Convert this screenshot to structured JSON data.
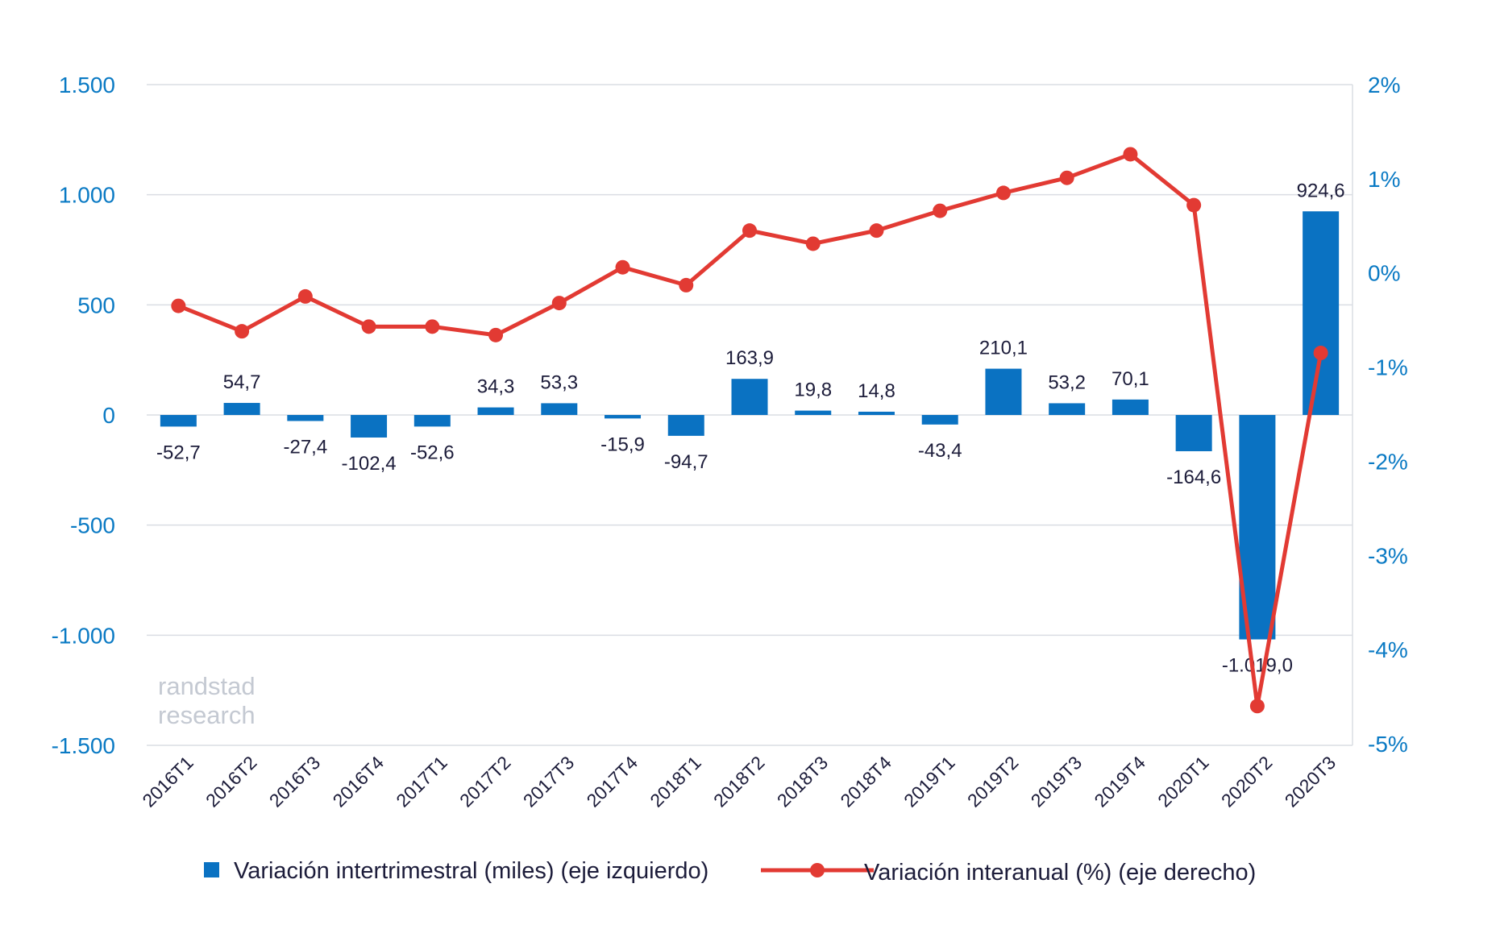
{
  "chart_data": {
    "type": "bar+line",
    "categories": [
      "2016T1",
      "2016T2",
      "2016T3",
      "2016T4",
      "2017T1",
      "2017T2",
      "2017T3",
      "2017T4",
      "2018T1",
      "2018T2",
      "2018T3",
      "2018T4",
      "2019T1",
      "2019T2",
      "2019T3",
      "2019T4",
      "2020T1",
      "2020T2",
      "2020T3"
    ],
    "series": [
      {
        "name": "Variación intertrimestral (miles) (eje izquierdo)",
        "type": "bar",
        "axis": "left",
        "color": "#0a72c2",
        "values": [
          -52.7,
          54.7,
          -27.4,
          -102.4,
          -52.6,
          34.3,
          53.3,
          -15.9,
          -94.7,
          163.9,
          19.8,
          14.8,
          -43.4,
          210.1,
          53.2,
          70.1,
          -164.6,
          -1019.0,
          924.6
        ],
        "labels": [
          "-52,7",
          "54,7",
          "-27,4",
          "-102,4",
          "-52,6",
          "34,3",
          "53,3",
          "-15,9",
          "-94,7",
          "163,9",
          "19,8",
          "14,8",
          "-43,4",
          "210,1",
          "53,2",
          "70,1",
          "-164,6",
          "-1.019,0",
          "924,6"
        ]
      },
      {
        "name": "Variación interanual (%) (eje derecho)",
        "type": "line",
        "axis": "right",
        "color": "#e23a33",
        "values": [
          -0.35,
          -0.62,
          -0.25,
          -0.57,
          -0.57,
          -0.66,
          -0.32,
          0.06,
          -0.13,
          0.45,
          0.31,
          0.45,
          0.66,
          0.85,
          1.01,
          1.26,
          0.72,
          -4.6,
          -0.85
        ]
      }
    ],
    "y_left": {
      "range": [
        -1500,
        1500
      ],
      "ticks": [
        1500,
        1000,
        500,
        0,
        -500,
        -1000,
        -1500
      ],
      "tick_labels": [
        "1.500",
        "1.000",
        "500",
        "0",
        "-500",
        "-1.000",
        "-1.500"
      ]
    },
    "y_right": {
      "range": [
        -5,
        2
      ],
      "ticks": [
        2,
        1,
        0,
        -1,
        -2,
        -3,
        -4,
        -5
      ],
      "tick_labels": [
        "2%",
        "1%",
        "0%",
        "-1%",
        "-2%",
        "-3%",
        "-4%",
        "-5%"
      ]
    },
    "grid": "horizontal",
    "legend_position": "bottom",
    "watermark": [
      "randstad",
      "research"
    ],
    "title": "",
    "xlabel": "",
    "ylabel": ""
  }
}
